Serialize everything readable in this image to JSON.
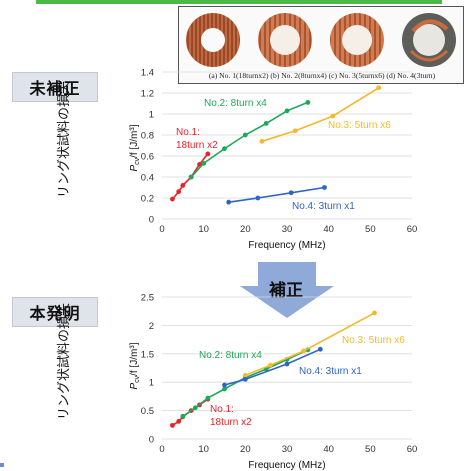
{
  "photo": {
    "caption": "(a) No. 1(18turnx2) (b) No. 2(8turnx4) (c) No. 3(5turnx6) (d) No. 4(3turn)"
  },
  "labels": {
    "before": "未補正",
    "after": "本発明",
    "correction": "補正",
    "y_axis_outer": "リング状試料の損失"
  },
  "colors": {
    "no1": "#e8242b",
    "no2": "#1ea859",
    "no3": "#f2b92c",
    "no4": "#2e64c6",
    "arrow": "#8fa9d8",
    "accent": "#4cb848"
  },
  "chart_data": [
    {
      "type": "line",
      "name": "top",
      "xlabel": "Frequency (MHz)",
      "ylabel": "P_cv/f [J/m³]",
      "xlim": [
        0,
        60
      ],
      "ylim": [
        0,
        1.4
      ],
      "xticks": [
        "0",
        "10",
        "20",
        "30",
        "40",
        "50",
        "60"
      ],
      "yticks": [
        "0",
        "0.2",
        "0.4",
        "0.6",
        "0.8",
        "1",
        "1.2",
        "1.4"
      ],
      "series": [
        {
          "name": "No.1: 18turn x2",
          "color_key": "no1",
          "x": [
            2.5,
            4,
            5,
            7,
            9,
            11
          ],
          "y": [
            0.19,
            0.26,
            0.32,
            0.4,
            0.52,
            0.62
          ]
        },
        {
          "name": "No.2: 8turn x4",
          "color_key": "no2",
          "x": [
            7,
            10,
            15,
            20,
            25,
            30,
            35
          ],
          "y": [
            0.4,
            0.53,
            0.67,
            0.8,
            0.91,
            1.03,
            1.11
          ]
        },
        {
          "name": "No.3: 5turn x6",
          "color_key": "no3",
          "x": [
            24,
            32,
            41,
            52
          ],
          "y": [
            0.74,
            0.84,
            0.98,
            1.25
          ]
        },
        {
          "name": "No.4: 3turn x1",
          "color_key": "no4",
          "x": [
            16,
            23,
            31,
            39
          ],
          "y": [
            0.16,
            0.2,
            0.25,
            0.3
          ]
        }
      ]
    },
    {
      "type": "line",
      "name": "bottom",
      "xlabel": "Frequency (MHz)",
      "ylabel": "P_cv/f [J/m³]",
      "xlim": [
        0,
        60
      ],
      "ylim": [
        0,
        2.5
      ],
      "xticks": [
        "0",
        "10",
        "20",
        "30",
        "40",
        "50",
        "60"
      ],
      "yticks": [
        "0",
        "0.5",
        "1",
        "1.5",
        "2",
        "2.5"
      ],
      "series": [
        {
          "name": "No.1: 18turn x2",
          "color_key": "no1",
          "x": [
            2.5,
            4,
            5,
            7,
            9,
            11
          ],
          "y": [
            0.24,
            0.31,
            0.39,
            0.5,
            0.6,
            0.7
          ]
        },
        {
          "name": "No.2: 8turn x4",
          "color_key": "no2",
          "x": [
            5,
            8,
            11,
            15,
            20,
            25,
            30,
            35
          ],
          "y": [
            0.4,
            0.55,
            0.72,
            0.88,
            1.08,
            1.23,
            1.4,
            1.57
          ]
        },
        {
          "name": "No.3: 5turn x6",
          "color_key": "no3",
          "x": [
            20,
            26,
            34,
            51
          ],
          "y": [
            1.12,
            1.3,
            1.55,
            2.22
          ]
        },
        {
          "name": "No.4: 3turn x1",
          "color_key": "no4",
          "x": [
            15,
            20,
            30,
            38
          ],
          "y": [
            0.95,
            1.05,
            1.32,
            1.58
          ]
        }
      ]
    }
  ]
}
